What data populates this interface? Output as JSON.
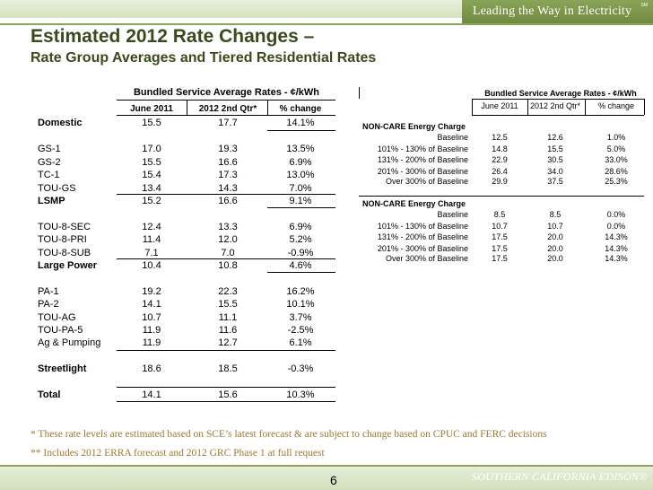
{
  "header": {
    "tagline": "Leading the Way in Electricity",
    "service_mark": "SM"
  },
  "title": {
    "line1": "Estimated 2012 Rate Changes –",
    "line2": "Rate Group Averages and Tiered Residential Rates"
  },
  "left_table": {
    "group_header": "Bundled Service Average Rates - ¢/kWh",
    "col_headers": [
      "June 2011",
      "2012 2nd Qtr*",
      "% change"
    ],
    "rows": [
      {
        "label": "Domestic",
        "v1": "15.5",
        "v2": "17.7",
        "pct": "14.1%",
        "bold": true
      },
      {
        "label": "GS-1",
        "v1": "17.0",
        "v2": "19.3",
        "pct": "13.5%",
        "bold": false
      },
      {
        "label": "GS-2",
        "v1": "15.5",
        "v2": "16.6",
        "pct": "6.9%",
        "bold": false
      },
      {
        "label": "TC-1",
        "v1": "15.4",
        "v2": "17.3",
        "pct": "13.0%",
        "bold": false
      },
      {
        "label": "TOU-GS",
        "v1": "13.4",
        "v2": "14.3",
        "pct": "7.0%",
        "bold": false
      },
      {
        "label": "LSMP",
        "v1": "15.2",
        "v2": "16.6",
        "pct": "9.1%",
        "bold": true
      },
      {
        "label": "TOU-8-SEC",
        "v1": "12.4",
        "v2": "13.3",
        "pct": "6.9%",
        "bold": false
      },
      {
        "label": "TOU-8-PRI",
        "v1": "11.4",
        "v2": "12.0",
        "pct": "5.2%",
        "bold": false
      },
      {
        "label": "TOU-8-SUB",
        "v1": "7.1",
        "v2": "7.0",
        "pct": "-0.9%",
        "bold": false
      },
      {
        "label": "Large Power",
        "v1": "10.4",
        "v2": "10.8",
        "pct": "4.6%",
        "bold": true
      },
      {
        "label": "PA-1",
        "v1": "19.2",
        "v2": "22.3",
        "pct": "16.2%",
        "bold": false
      },
      {
        "label": "PA-2",
        "v1": "14.1",
        "v2": "15.5",
        "pct": "10.1%",
        "bold": false
      },
      {
        "label": "TOU-AG",
        "v1": "10.7",
        "v2": "11.1",
        "pct": "3.7%",
        "bold": false
      },
      {
        "label": "TOU-PA-5",
        "v1": "11.9",
        "v2": "11.6",
        "pct": "-2.5%",
        "bold": false
      },
      {
        "label": "Ag & Pumping",
        "v1": "11.9",
        "v2": "12.7",
        "pct": "6.1%",
        "bold": false
      },
      {
        "label": "Streetlight",
        "v1": "18.6",
        "v2": "18.5",
        "pct": "-0.3%",
        "bold": true
      },
      {
        "label": "Total",
        "v1": "14.1",
        "v2": "15.6",
        "pct": "10.3%",
        "bold": true
      }
    ]
  },
  "right_table": {
    "group_header": "Bundled Service Average Rates - ¢/kWh",
    "col_headers": [
      "June 2011",
      "2012 2nd Qtr*",
      "% change"
    ],
    "sections": [
      {
        "title": "NON-CARE Energy Charge",
        "rows": [
          {
            "label": "Baseline",
            "v1": "12.5",
            "v2": "12.6",
            "pct": "1.0%"
          },
          {
            "label": "101% - 130% of Baseline",
            "v1": "14.8",
            "v2": "15.5",
            "pct": "5.0%"
          },
          {
            "label": "131% - 200% of Baseline",
            "v1": "22.9",
            "v2": "30.5",
            "pct": "33.0%"
          },
          {
            "label": "201% - 300% of Baseline",
            "v1": "26.4",
            "v2": "34.0",
            "pct": "28.6%"
          },
          {
            "label": "Over 300% of Baseline",
            "v1": "29.9",
            "v2": "37.5",
            "pct": "25.3%"
          }
        ]
      },
      {
        "title": "NON-CARE Energy Charge",
        "rows": [
          {
            "label": "Baseline",
            "v1": "8.5",
            "v2": "8.5",
            "pct": "0.0%"
          },
          {
            "label": "101% - 130% of Baseline",
            "v1": "10.7",
            "v2": "10.7",
            "pct": "0.0%"
          },
          {
            "label": "131% - 200% of Baseline",
            "v1": "17.5",
            "v2": "20.0",
            "pct": "14.3%"
          },
          {
            "label": "201% - 300% of Baseline",
            "v1": "17.5",
            "v2": "20.0",
            "pct": "14.3%"
          },
          {
            "label": "Over 300% of Baseline",
            "v1": "17.5",
            "v2": "20.0",
            "pct": "14.3%"
          }
        ]
      }
    ]
  },
  "footnotes": [
    "* These rate levels are estimated based on SCE’s latest forecast & are subject to change based on CPUC and FERC decisions",
    "** Includes 2012 ERRA forecast and 2012 GRC Phase 1 at full request"
  ],
  "footer": {
    "page_number": "6",
    "brand": "SOUTHERN CALIFORNIA EDISON®"
  },
  "colors": {
    "accent_green": "#8aa45a",
    "title_text": "#3b4a1c",
    "footnote_text": "#a07830"
  }
}
